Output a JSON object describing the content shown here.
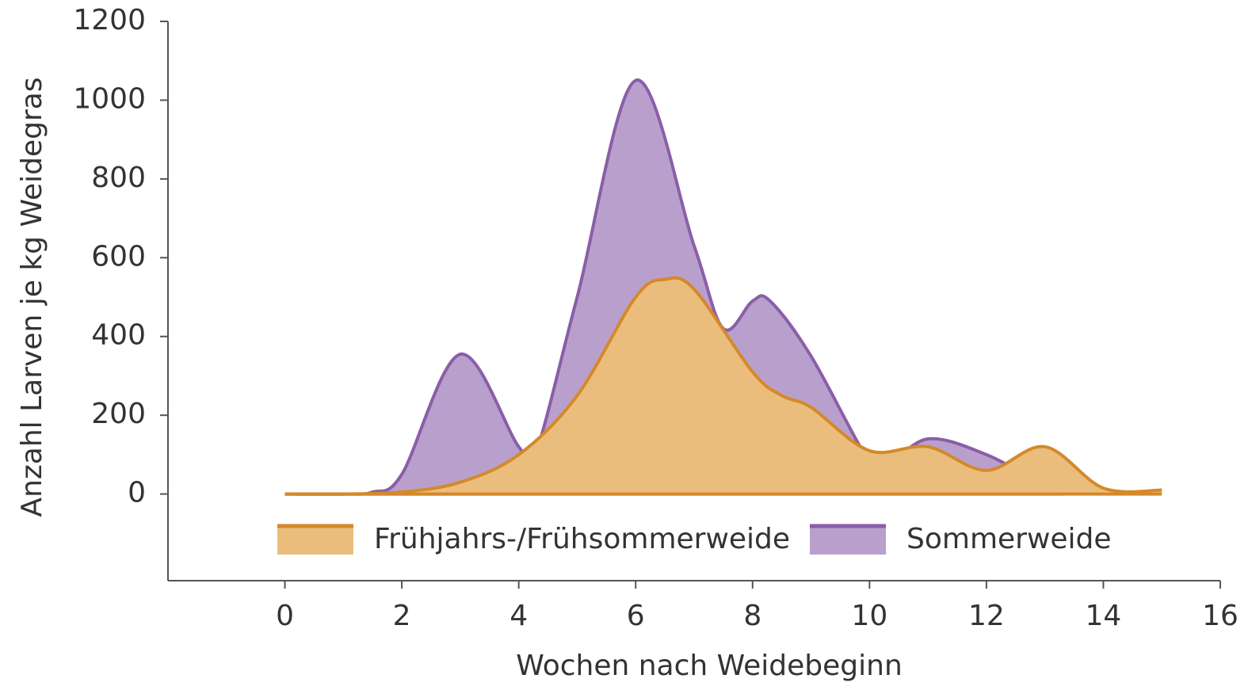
{
  "chart_data": {
    "type": "area",
    "xlabel": "Wochen nach Weidebeginn",
    "ylabel": "Anzahl Larven je kg Weidegras",
    "xlim": [
      -2,
      16
    ],
    "xticks": [
      0,
      2,
      4,
      6,
      8,
      10,
      12,
      14,
      16
    ],
    "ylim": [
      -220,
      1200
    ],
    "yticks": [
      0,
      200,
      400,
      600,
      800,
      1000,
      1200
    ],
    "legend": "bottom",
    "series": [
      {
        "name": "Sommerweide",
        "color": "#8a5ea8",
        "fill": "#b9a0cc",
        "x": [
          0,
          1,
          1.5,
          2,
          3,
          4,
          4.3,
          5,
          6,
          7,
          7.5,
          8,
          8.3,
          9,
          10,
          10.3,
          11,
          12,
          13,
          13.3
        ],
        "values": [
          0,
          0,
          5,
          50,
          355,
          120,
          110,
          500,
          1050,
          630,
          420,
          490,
          490,
          350,
          80,
          70,
          140,
          100,
          20,
          0
        ]
      },
      {
        "name": "Frühjahrs-/Frühsommerweide",
        "color": "#d4892a",
        "fill": "#ebbd7c",
        "x": [
          0,
          1,
          2,
          3,
          4,
          5,
          6,
          6.5,
          7,
          8,
          8.5,
          9,
          10,
          11,
          12,
          13,
          14,
          15
        ],
        "values": [
          0,
          0,
          5,
          30,
          100,
          250,
          500,
          545,
          520,
          310,
          250,
          220,
          110,
          120,
          60,
          120,
          15,
          10
        ]
      }
    ]
  }
}
